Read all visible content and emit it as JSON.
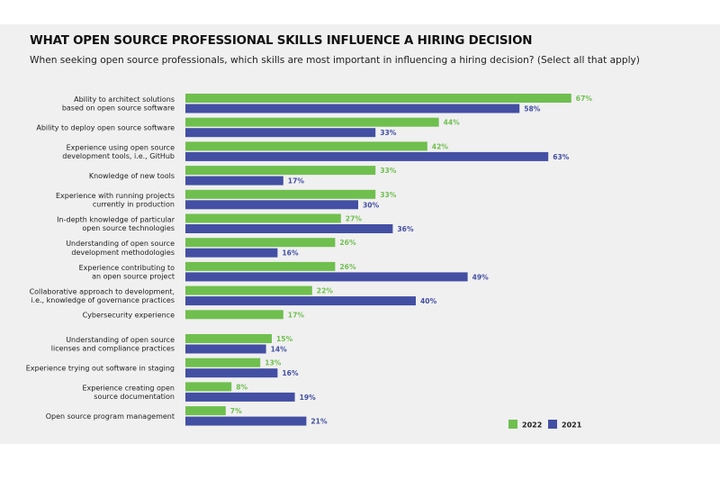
{
  "chart_data": {
    "type": "bar",
    "orientation": "horizontal",
    "title": "WHAT OPEN SOURCE PROFESSIONAL SKILLS INFLUENCE A HIRING DECISION",
    "subtitle": "When seeking open source professionals, which skills are most important in influencing a hiring decision? (Select all that apply)",
    "categories": [
      [
        "Ability to architect solutions",
        "based on open source software"
      ],
      [
        "Ability to deploy open source software"
      ],
      [
        "Experience using open source",
        "development tools, i.e., GitHub"
      ],
      [
        "Knowledge of new tools"
      ],
      [
        "Experience with running projects",
        "currently in production"
      ],
      [
        "In-depth knowledge of particular",
        "open source technologies"
      ],
      [
        "Understanding of open source",
        "development methodologies"
      ],
      [
        "Experience contributing to",
        "an open source project"
      ],
      [
        "Collaborative approach to development,",
        "i.e., knowledge of governance practices"
      ],
      [
        "Cybersecurity experience"
      ],
      [
        "Understanding of open source",
        "licenses and compliance practices"
      ],
      [
        "Experience trying out software in staging"
      ],
      [
        "Experience creating open",
        "source documentation"
      ],
      [
        "Open source program management"
      ]
    ],
    "series": [
      {
        "name": "2022",
        "color": "#6fbf4e",
        "values": [
          67,
          44,
          42,
          33,
          33,
          27,
          26,
          26,
          22,
          17,
          15,
          13,
          8,
          7
        ],
        "labels": [
          "67%",
          "44%",
          "42%",
          "33%",
          "33%",
          "27%",
          "26%",
          "26%",
          "22%",
          "17%",
          "15%",
          "13%",
          "8%",
          "7%"
        ]
      },
      {
        "name": "2021",
        "color": "#434fa3",
        "values": [
          58,
          33,
          63,
          17,
          30,
          36,
          16,
          49,
          40,
          null,
          14,
          16,
          19,
          21
        ],
        "labels": [
          "58%",
          "33%",
          "63%",
          "17%",
          "30%",
          "36%",
          "16%",
          "49%",
          "40%",
          "",
          "14%",
          "16%",
          "19%",
          "21%"
        ]
      }
    ],
    "unit": "%",
    "grid": false,
    "legend_position": "bottom-right",
    "legend": [
      "2022",
      "2021"
    ]
  }
}
